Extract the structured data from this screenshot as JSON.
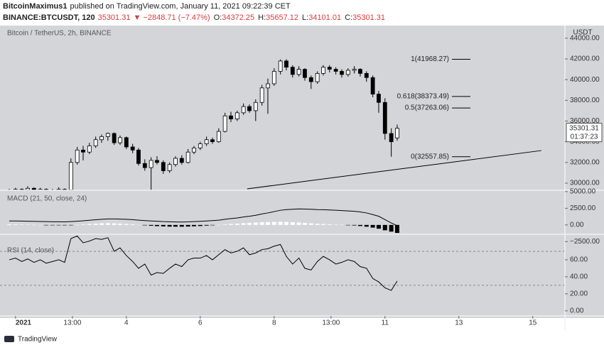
{
  "header": {
    "author": "BitcoinMaximus1",
    "published": "published on TradingView.com, January 11, 2021 09:22:39 CET",
    "symbol": "BINANCE:BTCUSDT, 120",
    "last": "35301.31",
    "change": "▼ −2848.71 (−7.47%)",
    "ohlc": [
      {
        "key": "O:",
        "value": "34372.25"
      },
      {
        "key": "H:",
        "value": "35657.12"
      },
      {
        "key": "L:",
        "value": "34101.01"
      },
      {
        "key": "C:",
        "value": "35301.31"
      }
    ]
  },
  "footer": {
    "logo": "TradingView"
  },
  "chart_data": [
    {
      "type": "candlestick",
      "title": "Bitcoin / TetherUS, 2h, BINANCE",
      "unit": "USDT",
      "background": "#d4d5d9",
      "up_color": "#ffffff",
      "down_color": "#000000",
      "grid": false,
      "xlim": [
        -0.42,
        14.87
      ],
      "ylim": [
        29314,
        45086
      ],
      "xticks": [
        {
          "value": 0,
          "label": "2021"
        },
        {
          "value": 1.54,
          "label": "13:00"
        },
        {
          "value": 3,
          "label": "4"
        },
        {
          "value": 5,
          "label": "6"
        },
        {
          "value": 7,
          "label": "8"
        },
        {
          "value": 8.54,
          "label": "13:00"
        },
        {
          "value": 10,
          "label": "11"
        },
        {
          "value": 12,
          "label": "13"
        },
        {
          "value": 14,
          "label": "15"
        }
      ],
      "yticks": [
        {
          "value": 30000,
          "label": "30000.00"
        },
        {
          "value": 32000,
          "label": "32000.00"
        },
        {
          "value": 34000,
          "label": "34000.00"
        },
        {
          "value": 36000,
          "label": "36000.00"
        },
        {
          "value": 38000,
          "label": "38000.00"
        },
        {
          "value": 40000,
          "label": "40000.00"
        },
        {
          "value": 42000,
          "label": "42000.00"
        },
        {
          "value": 44000,
          "label": "44000.00"
        }
      ],
      "x": [
        -0.17,
        0,
        0.17,
        0.33,
        0.5,
        0.67,
        0.83,
        1,
        1.17,
        1.33,
        1.5,
        1.67,
        1.83,
        2,
        2.17,
        2.33,
        2.5,
        2.67,
        2.83,
        3,
        3.17,
        3.33,
        3.5,
        3.67,
        3.83,
        4,
        4.17,
        4.33,
        4.5,
        4.67,
        4.83,
        5,
        5.17,
        5.33,
        5.5,
        5.67,
        5.83,
        6,
        6.17,
        6.33,
        6.5,
        6.67,
        6.83,
        7,
        7.17,
        7.33,
        7.5,
        7.67,
        7.83,
        8,
        8.17,
        8.33,
        8.5,
        8.67,
        8.83,
        9,
        9.17,
        9.33,
        9.5,
        9.67,
        9.83,
        10,
        10.17,
        10.33
      ],
      "candles": [
        {
          "o": 29100,
          "h": 29450,
          "l": 29000,
          "c": 29300
        },
        {
          "o": 29300,
          "h": 29550,
          "l": 29200,
          "c": 29400
        },
        {
          "o": 29400,
          "h": 29500,
          "l": 29200,
          "c": 29350
        },
        {
          "o": 29350,
          "h": 29700,
          "l": 29300,
          "c": 29500
        },
        {
          "o": 29500,
          "h": 29600,
          "l": 29150,
          "c": 29300
        },
        {
          "o": 29300,
          "h": 29550,
          "l": 29200,
          "c": 29400
        },
        {
          "o": 29400,
          "h": 29500,
          "l": 29100,
          "c": 29200
        },
        {
          "o": 29200,
          "h": 29450,
          "l": 29100,
          "c": 29300
        },
        {
          "o": 29300,
          "h": 29600,
          "l": 29250,
          "c": 29400
        },
        {
          "o": 29400,
          "h": 29500,
          "l": 29250,
          "c": 29350
        },
        {
          "o": 29350,
          "h": 32400,
          "l": 29300,
          "c": 32000
        },
        {
          "o": 32000,
          "h": 33500,
          "l": 31800,
          "c": 33200
        },
        {
          "o": 33200,
          "h": 33600,
          "l": 32200,
          "c": 33000
        },
        {
          "o": 33000,
          "h": 33900,
          "l": 32800,
          "c": 33600
        },
        {
          "o": 33600,
          "h": 34500,
          "l": 33400,
          "c": 34200
        },
        {
          "o": 34200,
          "h": 34700,
          "l": 33900,
          "c": 34500
        },
        {
          "o": 34500,
          "h": 34900,
          "l": 34100,
          "c": 34800
        },
        {
          "o": 34800,
          "h": 34900,
          "l": 33700,
          "c": 33900
        },
        {
          "o": 33900,
          "h": 34600,
          "l": 33700,
          "c": 34400
        },
        {
          "o": 34400,
          "h": 34500,
          "l": 33300,
          "c": 33500
        },
        {
          "o": 33500,
          "h": 33800,
          "l": 32900,
          "c": 33200
        },
        {
          "o": 33200,
          "h": 33400,
          "l": 31700,
          "c": 31900
        },
        {
          "o": 31900,
          "h": 32300,
          "l": 31200,
          "c": 31500
        },
        {
          "o": 31500,
          "h": 32500,
          "l": 29000,
          "c": 32200
        },
        {
          "o": 32200,
          "h": 32600,
          "l": 31800,
          "c": 32000
        },
        {
          "o": 32000,
          "h": 32200,
          "l": 30900,
          "c": 31200
        },
        {
          "o": 31200,
          "h": 32000,
          "l": 31000,
          "c": 31800
        },
        {
          "o": 31800,
          "h": 32600,
          "l": 31600,
          "c": 32400
        },
        {
          "o": 32400,
          "h": 32700,
          "l": 31800,
          "c": 32000
        },
        {
          "o": 32000,
          "h": 33300,
          "l": 31900,
          "c": 33000
        },
        {
          "o": 33000,
          "h": 33600,
          "l": 32800,
          "c": 33400
        },
        {
          "o": 33400,
          "h": 34000,
          "l": 33200,
          "c": 33800
        },
        {
          "o": 33800,
          "h": 34500,
          "l": 33600,
          "c": 34200
        },
        {
          "o": 34200,
          "h": 34400,
          "l": 33800,
          "c": 34000
        },
        {
          "o": 34000,
          "h": 35300,
          "l": 33900,
          "c": 35000
        },
        {
          "o": 35000,
          "h": 36800,
          "l": 34900,
          "c": 36500
        },
        {
          "o": 36500,
          "h": 36900,
          "l": 35900,
          "c": 36200
        },
        {
          "o": 36200,
          "h": 37000,
          "l": 36000,
          "c": 36800
        },
        {
          "o": 36800,
          "h": 37700,
          "l": 36600,
          "c": 37400
        },
        {
          "o": 37400,
          "h": 37600,
          "l": 36800,
          "c": 37000
        },
        {
          "o": 37000,
          "h": 38100,
          "l": 36000,
          "c": 37800
        },
        {
          "o": 37800,
          "h": 39500,
          "l": 37500,
          "c": 39200
        },
        {
          "o": 39200,
          "h": 40100,
          "l": 36700,
          "c": 39600
        },
        {
          "o": 39600,
          "h": 41100,
          "l": 39400,
          "c": 40800
        },
        {
          "o": 40800,
          "h": 41950,
          "l": 40500,
          "c": 41800
        },
        {
          "o": 41800,
          "h": 41968.27,
          "l": 40900,
          "c": 41200
        },
        {
          "o": 41200,
          "h": 41400,
          "l": 40200,
          "c": 40500
        },
        {
          "o": 40500,
          "h": 41300,
          "l": 40300,
          "c": 41000
        },
        {
          "o": 41000,
          "h": 41100,
          "l": 39900,
          "c": 40200
        },
        {
          "o": 40200,
          "h": 40400,
          "l": 39100,
          "c": 39800
        },
        {
          "o": 39800,
          "h": 40800,
          "l": 39600,
          "c": 40600
        },
        {
          "o": 40600,
          "h": 41400,
          "l": 40400,
          "c": 41200
        },
        {
          "o": 41200,
          "h": 41400,
          "l": 40700,
          "c": 41000
        },
        {
          "o": 41000,
          "h": 41200,
          "l": 40500,
          "c": 40800
        },
        {
          "o": 40800,
          "h": 41000,
          "l": 40200,
          "c": 40500
        },
        {
          "o": 40500,
          "h": 41100,
          "l": 40300,
          "c": 40900
        },
        {
          "o": 40900,
          "h": 41300,
          "l": 40600,
          "c": 41000
        },
        {
          "o": 41000,
          "h": 41100,
          "l": 40300,
          "c": 40600
        },
        {
          "o": 40600,
          "h": 40800,
          "l": 39800,
          "c": 40200
        },
        {
          "o": 40200,
          "h": 40400,
          "l": 38300,
          "c": 38600
        },
        {
          "o": 38600,
          "h": 38900,
          "l": 36800,
          "c": 37800
        },
        {
          "o": 37800,
          "h": 38200,
          "l": 34200,
          "c": 34800
        },
        {
          "o": 34800,
          "h": 35300,
          "l": 32557.85,
          "c": 34000
        },
        {
          "o": 34372.25,
          "h": 35657.12,
          "l": 34101.01,
          "c": 35301.31
        }
      ],
      "fib_levels": [
        {
          "price": 41968.27,
          "label": "1(41968.27)"
        },
        {
          "price": 38373.49,
          "label": "0.618(38373.49)"
        },
        {
          "price": 37263.06,
          "label": "0.5(37263.06)"
        },
        {
          "price": 32557.85,
          "label": "0(32557.85)"
        }
      ],
      "trendline": {
        "x": [
          6.27,
          14.23
        ],
        "y": [
          29450,
          33150
        ],
        "color": "#000000"
      },
      "last_price": 35301.31,
      "countdown": "01:37:23"
    },
    {
      "type": "macd",
      "title": "MACD (21, 50, close, 24)",
      "ylim": [
        -1400,
        5200
      ],
      "yticks": [
        {
          "value": 5000,
          "label": "5000.00"
        },
        {
          "value": 2500,
          "label": "2500.00"
        },
        {
          "value": 0,
          "label": "0.00"
        },
        {
          "value": -2500,
          "label": "−2500.00"
        }
      ],
      "macd": {
        "color": "#000000",
        "values": [
          600,
          600,
          580,
          560,
          540,
          520,
          500,
          480,
          470,
          460,
          500,
          560,
          620,
          700,
          780,
          850,
          900,
          900,
          880,
          850,
          800,
          720,
          650,
          600,
          560,
          500,
          470,
          450,
          440,
          460,
          500,
          540,
          600,
          650,
          720,
          850,
          950,
          1050,
          1200,
          1300,
          1450,
          1650,
          1800,
          2000,
          2200,
          2300,
          2350,
          2400,
          2380,
          2350,
          2300,
          2280,
          2250,
          2200,
          2150,
          2100,
          2050,
          1950,
          1800,
          1550,
          1300,
          800,
          300,
          -100
        ]
      },
      "histogram": {
        "up_color": "#ffffff",
        "down_color": "#000000",
        "values": [
          100,
          80,
          60,
          40,
          20,
          0,
          -20,
          -40,
          -50,
          -60,
          -30,
          20,
          80,
          150,
          200,
          250,
          260,
          240,
          200,
          150,
          100,
          20,
          -60,
          -120,
          -180,
          -220,
          -250,
          -260,
          -260,
          -240,
          -200,
          -160,
          -100,
          -50,
          0,
          80,
          150,
          200,
          260,
          300,
          350,
          400,
          420,
          450,
          480,
          460,
          400,
          350,
          300,
          240,
          180,
          140,
          100,
          60,
          20,
          -20,
          -80,
          -160,
          -260,
          -400,
          -560,
          -800,
          -1000,
          -1200
        ]
      }
    },
    {
      "type": "rsi",
      "title": "RSI (14, close)",
      "color": "#000000",
      "ylim": [
        -6,
        90
      ],
      "bands": [
        70,
        30
      ],
      "yticks": [
        {
          "value": 60,
          "label": "60.00"
        },
        {
          "value": 40,
          "label": "40.00"
        },
        {
          "value": 20,
          "label": "20.00"
        },
        {
          "value": 0,
          "label": "0.00"
        }
      ],
      "values": [
        60,
        62,
        58,
        61,
        57,
        60,
        56,
        58,
        60,
        57,
        85,
        88,
        80,
        82,
        85,
        84,
        86,
        70,
        74,
        65,
        58,
        50,
        55,
        42,
        45,
        44,
        50,
        55,
        52,
        60,
        62,
        62,
        65,
        60,
        66,
        72,
        68,
        70,
        74,
        66,
        68,
        72,
        73,
        76,
        78,
        64,
        55,
        62,
        50,
        48,
        58,
        64,
        60,
        55,
        57,
        60,
        58,
        52,
        50,
        38,
        34,
        27,
        24,
        35
      ]
    }
  ]
}
